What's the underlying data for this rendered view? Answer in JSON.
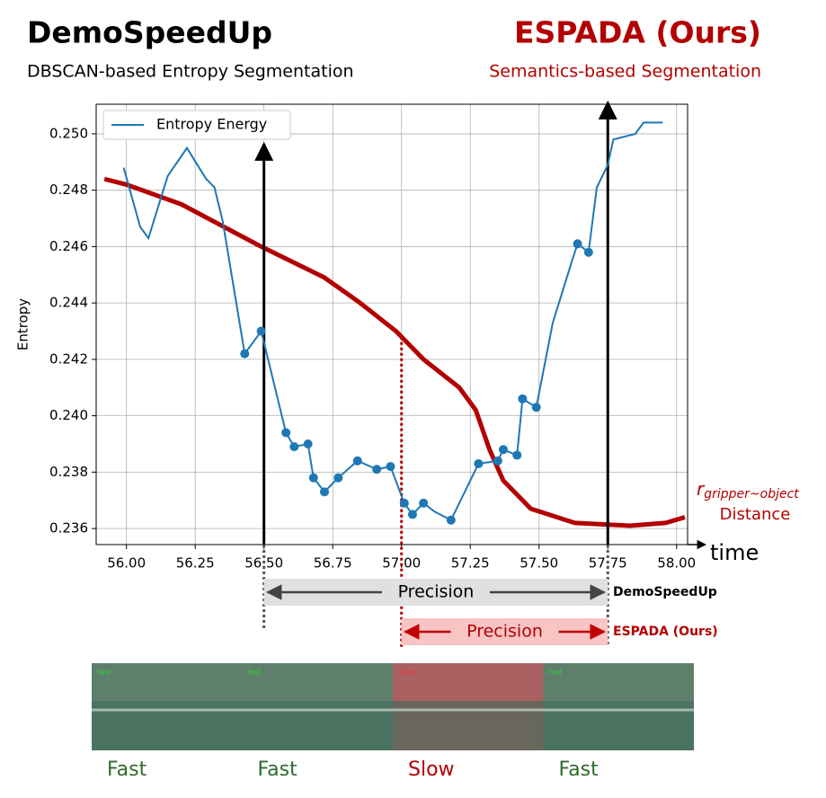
{
  "chart_data": {
    "type": "line",
    "title_left": "DemoSpeedUp",
    "subtitle_left": "DBSCAN-based Entropy Segmentation",
    "title_right": "ESPADA (Ours)",
    "subtitle_right": "Semantics-based Segmentation",
    "ylabel": "Entropy",
    "xlabel": "time",
    "xlim": [
      55.89,
      58.04
    ],
    "ylim": [
      0.23543,
      0.25105
    ],
    "xticks": [
      {
        "value": 56,
        "label": "56.00"
      },
      56.25,
      {
        "value": 56.5,
        "label": "56.50"
      },
      56.75,
      {
        "value": 57,
        "label": "57.00"
      },
      57.25,
      {
        "value": 57.5,
        "label": "57.50"
      },
      57.75,
      {
        "value": 58,
        "label": "58.00"
      }
    ],
    "yticks": [
      0.236,
      0.238,
      {
        "value": 0.24,
        "label": "0.240"
      },
      0.242,
      0.244,
      0.246,
      0.248,
      {
        "value": 0.25,
        "label": "0.250"
      }
    ],
    "grid": true,
    "legend": "upper left",
    "series": [
      {
        "name": "Entropy Energy",
        "color": "#1f77b4",
        "x": [
          55.99,
          56.05,
          56.08,
          56.15,
          56.22,
          56.245,
          56.29,
          56.32,
          56.35,
          56.43,
          56.49,
          56.58,
          56.61,
          56.66,
          56.68,
          56.72,
          56.77,
          56.84,
          56.91,
          56.96,
          57.01,
          57.04,
          57.08,
          57.12,
          57.18,
          57.28,
          57.35,
          57.37,
          57.42,
          57.44,
          57.49,
          57.55,
          57.62,
          57.64,
          57.68,
          57.71,
          57.75,
          57.77,
          57.85,
          57.88,
          57.91,
          57.95
        ],
        "values": [
          0.2488,
          0.2467,
          0.2463,
          0.2485,
          0.2495,
          0.2491,
          0.2484,
          0.2481,
          0.2469,
          0.2422,
          0.243,
          0.2394,
          0.2389,
          0.239,
          0.2378,
          0.2373,
          0.2378,
          0.2384,
          0.2381,
          0.2382,
          0.2369,
          0.2365,
          0.2369,
          0.2366,
          0.2363,
          0.2383,
          0.2384,
          0.2388,
          0.2386,
          0.2406,
          0.2403,
          0.2433,
          0.2455,
          0.2461,
          0.2458,
          0.2481,
          0.2489,
          0.2498,
          0.25,
          0.2504,
          0.2504,
          0.2504
        ],
        "markers": [
          false,
          false,
          false,
          false,
          false,
          false,
          false,
          false,
          false,
          true,
          true,
          true,
          true,
          true,
          true,
          true,
          true,
          true,
          true,
          true,
          true,
          true,
          true,
          false,
          true,
          true,
          true,
          true,
          true,
          true,
          true,
          false,
          false,
          true,
          true,
          false,
          false,
          false,
          false,
          false,
          false,
          false
        ]
      }
    ],
    "distance_curve": {
      "symbol": "r",
      "subscript": "gripper~object",
      "label": "Distance",
      "color": "#b30000",
      "x": [
        55.92,
        56.0,
        56.2,
        56.49,
        56.72,
        56.85,
        56.98,
        57.08,
        57.21,
        57.27,
        57.32,
        57.37,
        57.47,
        57.63,
        57.83,
        57.96,
        58.03
      ],
      "values": [
        0.2484,
        0.2482,
        0.2475,
        0.246,
        0.2449,
        0.244,
        0.243,
        0.242,
        0.241,
        0.2402,
        0.2388,
        0.2377,
        0.2367,
        0.2362,
        0.2361,
        0.2362,
        0.2364
      ]
    },
    "event_lines": [
      {
        "x": 56.5,
        "color": "#000000"
      },
      {
        "x": 57.75,
        "color": "#000000"
      },
      {
        "x": 57.0,
        "color": "#b30000"
      }
    ],
    "spans": [
      {
        "label": "Precision",
        "name": "DemoSpeedUp",
        "start": 56.5,
        "end": 57.75,
        "color": "#e0e0e0",
        "text_color": "#000000",
        "arrow_color": "#444444"
      },
      {
        "label": "Precision",
        "name": "ESPADA (Ours)",
        "start": 57.0,
        "end": 57.75,
        "color": "#f8c4c4",
        "text_color": "#b30000",
        "arrow_color": "#c00000"
      }
    ],
    "frames": [
      {
        "overlay": "fast",
        "label": "Fast",
        "color": "#5e7f6c",
        "text_color": "#2e6b2e"
      },
      {
        "overlay": "fast",
        "label": "Fast",
        "color": "#5e7f6c",
        "text_color": "#2e6b2e"
      },
      {
        "overlay": "slow",
        "label": "Slow",
        "color": "#a86060",
        "text_color": "#b30000"
      },
      {
        "overlay": "fast",
        "label": "Fast",
        "color": "#5e7f6c",
        "text_color": "#2e6b2e"
      }
    ]
  }
}
